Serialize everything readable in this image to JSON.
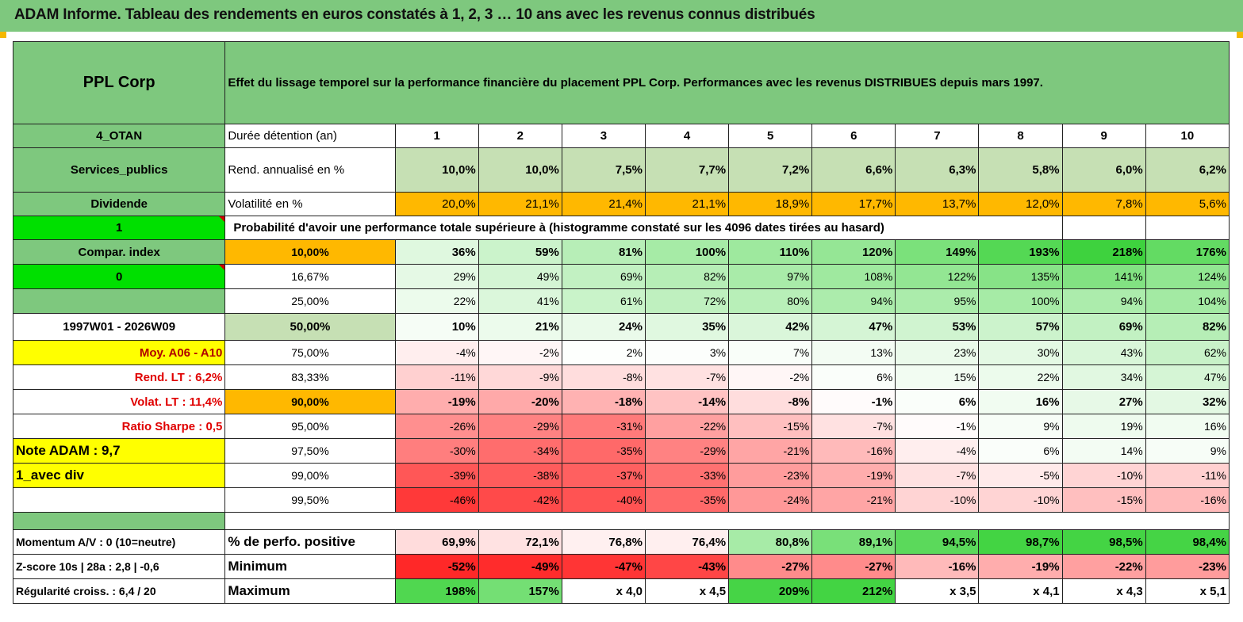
{
  "title": "ADAM Informe. Tableau des rendements en euros constatés à 1, 2, 3 … 10 ans avec les revenus connus distribués",
  "header": {
    "left": "PPL Corp",
    "right": "Effet du lissage temporel sur la performance financière du placement PPL Corp. Performances avec les revenus DISTRIBUES depuis mars 1997."
  },
  "rows_top": [
    {
      "left": "4_OTAN",
      "label": "Durée détention (an)",
      "values": [
        "1",
        "2",
        "3",
        "4",
        "5",
        "6",
        "7",
        "8",
        "9",
        "10"
      ]
    },
    {
      "left": "Services_publics",
      "label": "Rend. annualisé en %",
      "values": [
        "10,0%",
        "10,0%",
        "7,5%",
        "7,7%",
        "7,2%",
        "6,6%",
        "6,3%",
        "5,8%",
        "6,0%",
        "6,2%"
      ]
    },
    {
      "left": "Dividende",
      "label": "Volatilité en %",
      "values": [
        "20,0%",
        "21,1%",
        "21,4%",
        "21,1%",
        "18,9%",
        "17,7%",
        "13,7%",
        "12,0%",
        "7,8%",
        "5,6%"
      ]
    }
  ],
  "prob_row": {
    "left": "1",
    "text": "Probabilité d'avoir une performance totale supérieure à (histogramme constaté sur les 4096 dates tirées au hasard)"
  },
  "prob_rows": [
    {
      "left": "Compar. index",
      "pct": "10,00%",
      "values": [
        "36%",
        "59%",
        "81%",
        "100%",
        "110%",
        "120%",
        "149%",
        "193%",
        "218%",
        "176%"
      ]
    },
    {
      "left": "0",
      "pct": "16,67%",
      "values": [
        "29%",
        "49%",
        "69%",
        "82%",
        "97%",
        "108%",
        "122%",
        "135%",
        "141%",
        "124%"
      ]
    },
    {
      "left": "",
      "pct": "25,00%",
      "values": [
        "22%",
        "41%",
        "61%",
        "72%",
        "80%",
        "94%",
        "95%",
        "100%",
        "94%",
        "104%"
      ]
    },
    {
      "left": "1997W01 - 2026W09",
      "pct": "50,00%",
      "values": [
        "10%",
        "21%",
        "24%",
        "35%",
        "42%",
        "47%",
        "53%",
        "57%",
        "69%",
        "82%"
      ]
    },
    {
      "left": "Moy. A06 - A10",
      "pct": "75,00%",
      "values": [
        "-4%",
        "-2%",
        "2%",
        "3%",
        "7%",
        "13%",
        "23%",
        "30%",
        "43%",
        "62%"
      ]
    },
    {
      "left": "Rend. LT :   6,2%",
      "pct": "83,33%",
      "values": [
        "-11%",
        "-9%",
        "-8%",
        "-7%",
        "-2%",
        "6%",
        "15%",
        "22%",
        "34%",
        "47%"
      ]
    },
    {
      "left": "Volat. LT :   11,4%",
      "pct": "90,00%",
      "values": [
        "-19%",
        "-20%",
        "-18%",
        "-14%",
        "-8%",
        "-1%",
        "6%",
        "16%",
        "27%",
        "32%"
      ]
    },
    {
      "left": "Ratio Sharpe :    0,5",
      "pct": "95,00%",
      "values": [
        "-26%",
        "-29%",
        "-31%",
        "-22%",
        "-15%",
        "-7%",
        "-1%",
        "9%",
        "19%",
        "16%"
      ]
    },
    {
      "left": "Note ADAM : 9,7",
      "pct": "97,50%",
      "values": [
        "-30%",
        "-34%",
        "-35%",
        "-29%",
        "-21%",
        "-16%",
        "-4%",
        "6%",
        "14%",
        "9%"
      ]
    },
    {
      "left": "1_avec div",
      "pct": "99,00%",
      "values": [
        "-39%",
        "-38%",
        "-37%",
        "-33%",
        "-23%",
        "-19%",
        "-7%",
        "-5%",
        "-10%",
        "-11%"
      ]
    },
    {
      "left": "",
      "pct": "99,50%",
      "values": [
        "-46%",
        "-42%",
        "-40%",
        "-35%",
        "-24%",
        "-21%",
        "-10%",
        "-10%",
        "-15%",
        "-16%"
      ]
    }
  ],
  "bottom_rows": [
    {
      "left": "Momentum A/V : 0 (10=neutre)",
      "label": "% de perfo. positive",
      "values": [
        "69,9%",
        "72,1%",
        "76,8%",
        "76,4%",
        "80,8%",
        "89,1%",
        "94,5%",
        "98,7%",
        "98,5%",
        "98,4%"
      ]
    },
    {
      "left": "Z-score 10s | 28a : 2,8 | -0,6",
      "label": "Minimum",
      "values": [
        "-52%",
        "-49%",
        "-47%",
        "-43%",
        "-27%",
        "-27%",
        "-16%",
        "-19%",
        "-22%",
        "-23%"
      ]
    },
    {
      "left": "Régularité croiss. : 6,4 / 20",
      "label": "Maximum",
      "values": [
        "198%",
        "157%",
        "x 4,0",
        "x 4,5",
        "209%",
        "212%",
        "x 3,5",
        "x 4,1",
        "x 4,3",
        "x 5,1"
      ]
    }
  ],
  "colors": {
    "green_header": "#7ec87e",
    "light_green": "#c6e0b4",
    "orange": "#ffb800",
    "bright_green": "#00e000",
    "yellow": "#ffff00",
    "red_text": "#e00000"
  }
}
